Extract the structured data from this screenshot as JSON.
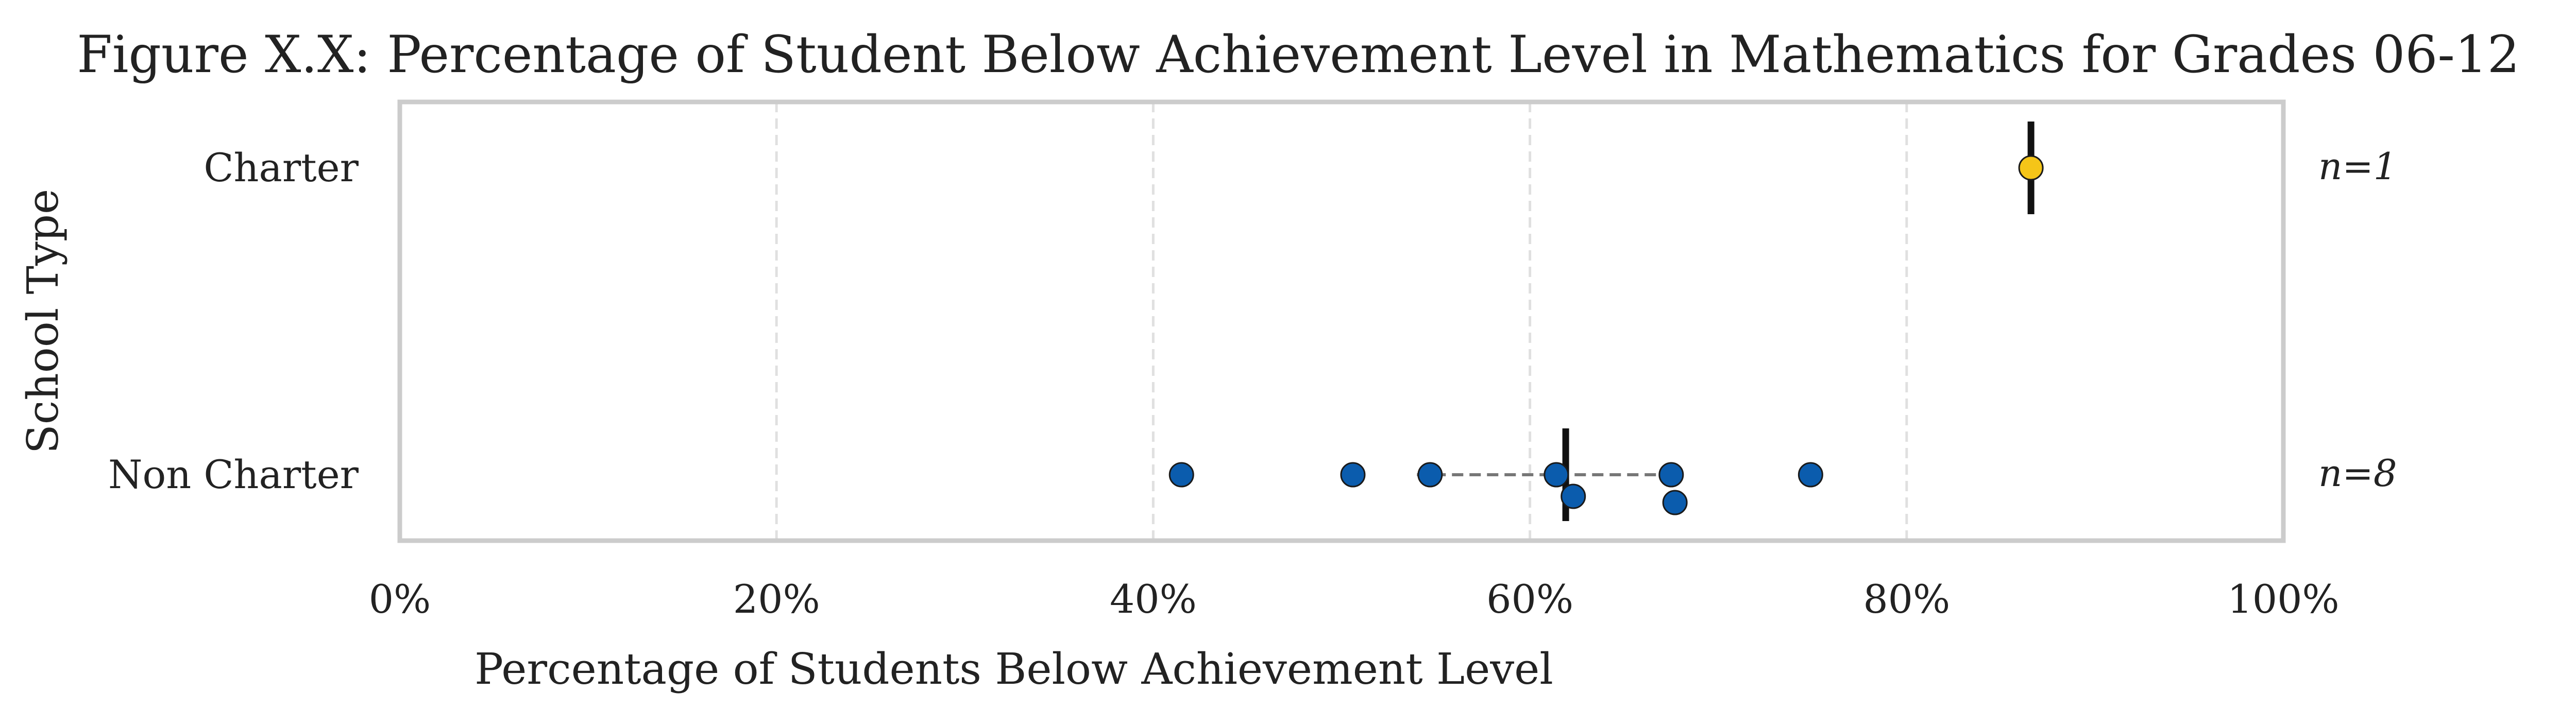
{
  "chart_data": {
    "type": "scatter",
    "title": "Figure X.X: Percentage of Student Below Achievement Level in Mathematics for Grades 06-12",
    "xlabel": "Percentage of Students Below Achievement Level",
    "ylabel": "School Type",
    "xlim": [
      0,
      100
    ],
    "x_ticks": [
      {
        "value": 0,
        "label": "0%"
      },
      {
        "value": 20,
        "label": "20%"
      },
      {
        "value": 40,
        "label": "40%"
      },
      {
        "value": 60,
        "label": "60%"
      },
      {
        "value": 80,
        "label": "80%"
      },
      {
        "value": 100,
        "label": "100%"
      }
    ],
    "grid": "vertical dashed",
    "categories": [
      "Charter",
      "Non Charter"
    ],
    "groups": [
      {
        "category": "Charter",
        "n_label": "n=1",
        "color": "#f5c518",
        "points": [
          86.6
        ],
        "median": 86.6,
        "iqr": null
      },
      {
        "category": "Non Charter",
        "n_label": "n=8",
        "color": "#0b5cad",
        "points": [
          41.5,
          50.6,
          54.7,
          61.4,
          62.3,
          67.5,
          67.7,
          74.9
        ],
        "median": 61.9,
        "iqr": [
          54.0,
          67.5
        ]
      }
    ]
  }
}
